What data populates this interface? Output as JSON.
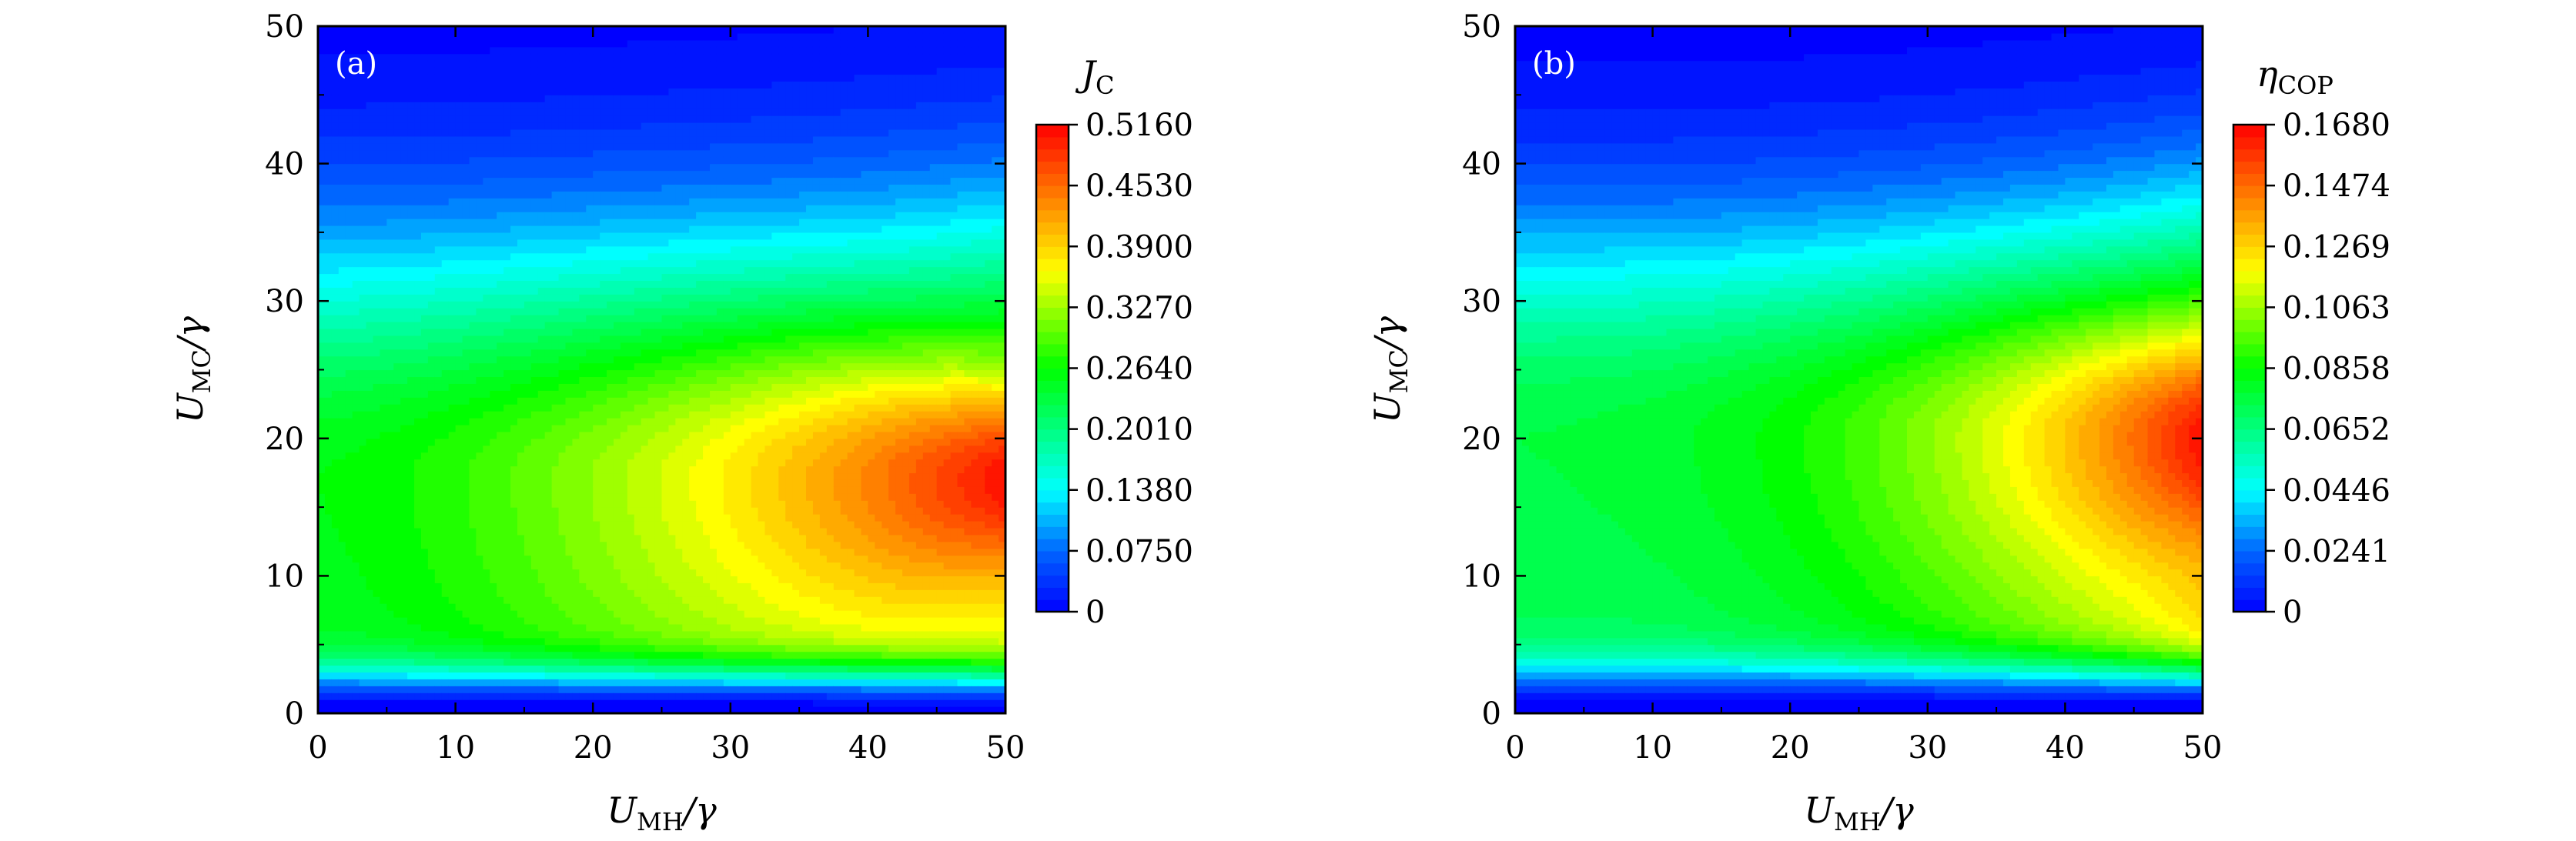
{
  "chart_data": [
    {
      "type": "heatmap",
      "panel_label": "(a)",
      "x_var": "U",
      "x_sub": "MH",
      "x_den": "/γ",
      "y_var": "U",
      "y_sub": "MC",
      "y_den": "/γ",
      "xlim": [
        0,
        50
      ],
      "ylim": [
        0,
        50
      ],
      "xticks": [
        0,
        10,
        20,
        30,
        40,
        50
      ],
      "yticks": [
        0,
        10,
        20,
        30,
        40,
        50
      ],
      "colorbar": {
        "var": "J",
        "sub": "C",
        "ticks": [
          "0",
          "0.0750",
          "0.1380",
          "0.2010",
          "0.2640",
          "0.3270",
          "0.3900",
          "0.4530",
          "0.5160"
        ],
        "min": 0,
        "max": 0.516
      },
      "peak": {
        "x": 50,
        "y": 17,
        "value": 0.516
      },
      "levels": 40
    },
    {
      "type": "heatmap",
      "panel_label": "(b)",
      "x_var": "U",
      "x_sub": "MH",
      "x_den": "/γ",
      "y_var": "U",
      "y_sub": "MC",
      "y_den": "/γ",
      "xlim": [
        0,
        50
      ],
      "ylim": [
        0,
        50
      ],
      "xticks": [
        0,
        10,
        20,
        30,
        40,
        50
      ],
      "yticks": [
        0,
        10,
        20,
        30,
        40,
        50
      ],
      "colorbar": {
        "var": "η",
        "sub": "COP",
        "ticks": [
          "0",
          "0.0241",
          "0.0446",
          "0.0652",
          "0.0858",
          "0.1063",
          "0.1269",
          "0.1474",
          "0.1680"
        ],
        "min": 0,
        "max": 0.168
      },
      "peak": {
        "x": 50,
        "y": 20,
        "value": 0.168
      },
      "levels": 40
    }
  ]
}
